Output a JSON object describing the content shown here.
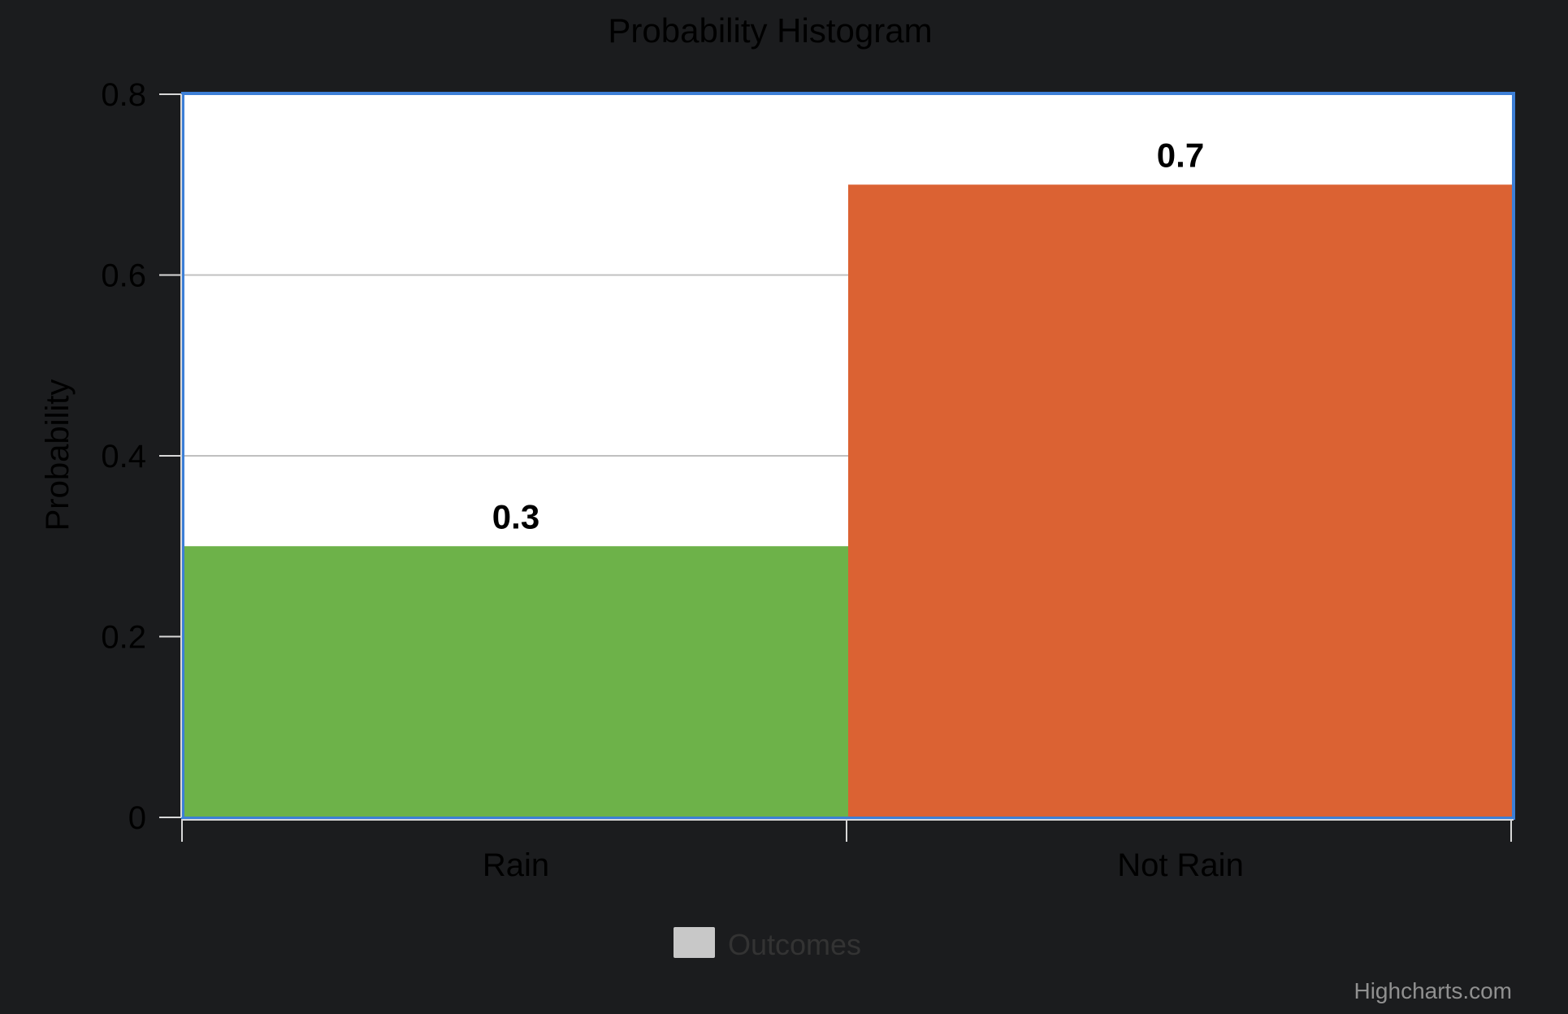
{
  "chart_data": {
    "type": "bar",
    "title": "Probability Histogram",
    "xlabel": "",
    "ylabel": "Probability",
    "categories": [
      "Rain",
      "Not Rain"
    ],
    "series": [
      {
        "name": "Outcomes",
        "values": [
          0.3,
          0.7
        ],
        "colors": [
          "#6db249",
          "#db6233"
        ]
      }
    ],
    "ylim": [
      0,
      0.8
    ],
    "yticks": [
      0,
      0.2,
      0.4,
      0.6,
      0.8
    ],
    "ytick_labels": [
      "0",
      "0.2",
      "0.4",
      "0.6",
      "0.8"
    ],
    "data_labels": [
      "0.3",
      "0.7"
    ],
    "grid": true,
    "legend": {
      "position": "bottom-center",
      "swatch_color": "#c8c8c8"
    },
    "credit": "Highcharts.com",
    "colors": {
      "background": "#1b1c1e",
      "plot_background": "#ffffff",
      "plot_border": "#3d7fd6",
      "grid": "#c0c0c0",
      "axis": "#d8d8d8"
    }
  }
}
